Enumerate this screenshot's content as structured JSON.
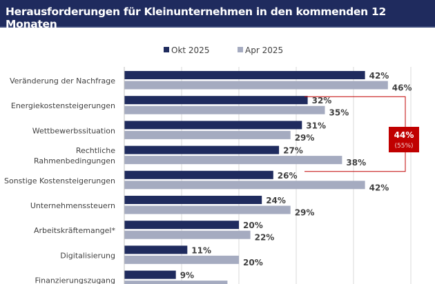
{
  "header": {
    "title": "Herausforderungen für Kleinunternehmen in den kommenden 12 Monaten"
  },
  "chart_data": {
    "type": "bar",
    "orientation": "horizontal",
    "title": "Herausforderungen für Kleinunternehmen in den kommenden 12 Monaten",
    "categories": [
      [
        "Veränderung der Nachfrage"
      ],
      [
        "Energiekostensteigerungen"
      ],
      [
        "Wettbewerbssituation"
      ],
      [
        "Rechtliche",
        "Rahmenbedingungen"
      ],
      [
        "Sonstige Kostensteigerungen"
      ],
      [
        "Unternehmenssteuern"
      ],
      [
        "Arbeitskräftemangel*"
      ],
      [
        "Digitalisierung"
      ],
      [
        "Finanzierungszugang"
      ]
    ],
    "series": [
      {
        "name": "Okt 2025",
        "color": "#1f2b5e",
        "values": [
          42,
          32,
          31,
          27,
          26,
          24,
          20,
          11,
          9
        ]
      },
      {
        "name": "Apr 2025",
        "color": "#a5abc0",
        "values": [
          46,
          35,
          29,
          38,
          42,
          29,
          22,
          20,
          18
        ]
      }
    ],
    "xlim": [
      0,
      50
    ],
    "grid": true,
    "legend": "top-center",
    "annotation": {
      "value": "44%",
      "sub": "(55%)",
      "color": "#c00000"
    }
  }
}
